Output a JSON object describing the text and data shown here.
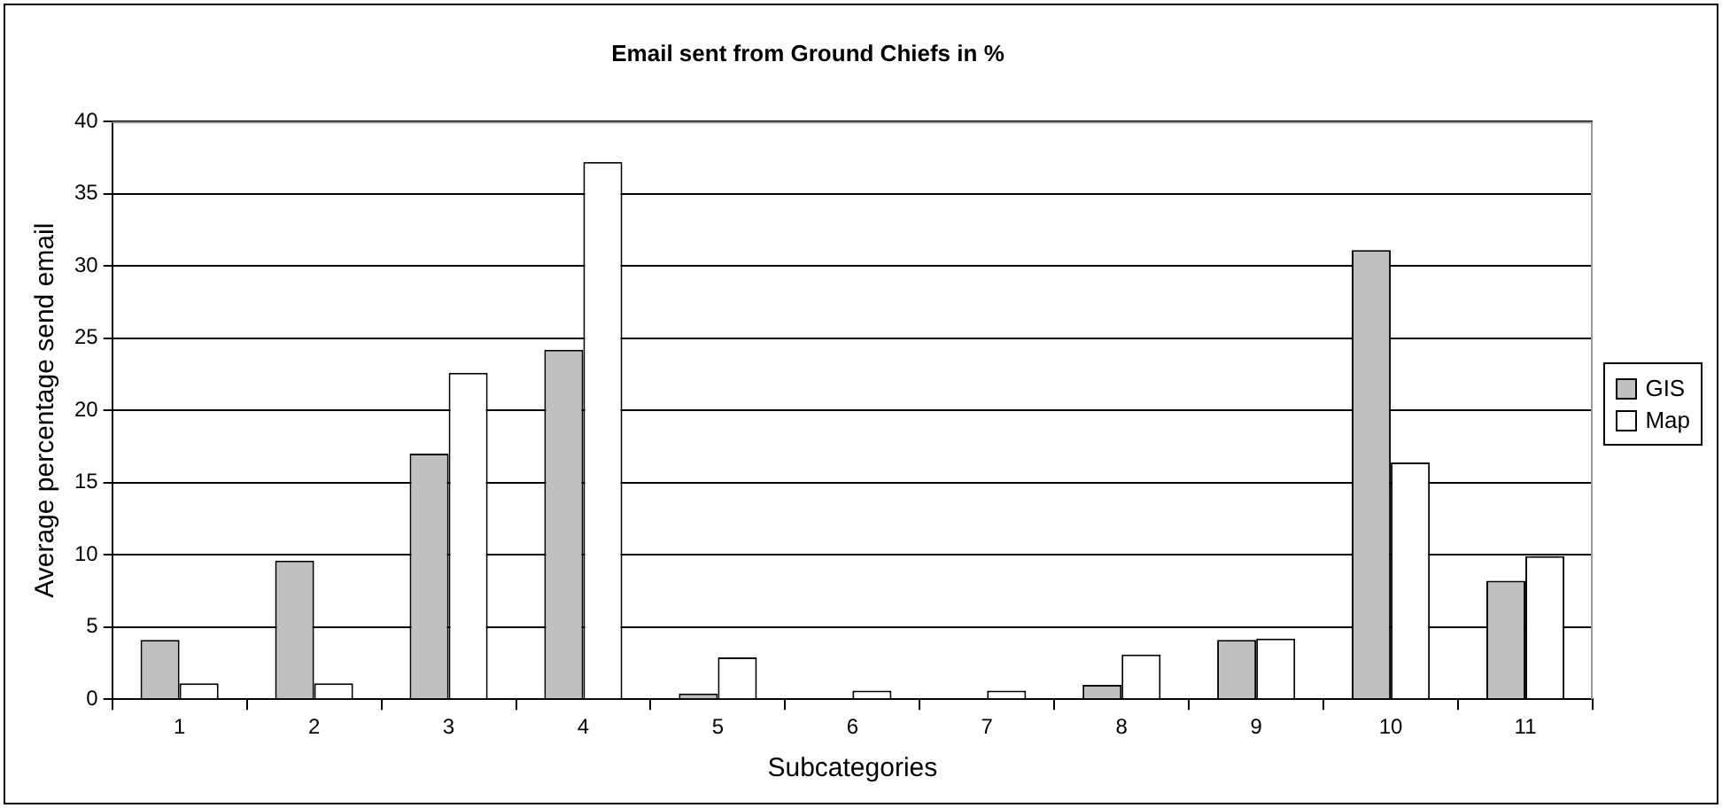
{
  "chart_data": {
    "type": "bar",
    "title": "Email sent from Ground Chiefs in %",
    "xlabel": "Subcategories",
    "ylabel": "Average percentage send email",
    "categories": [
      "1",
      "2",
      "3",
      "4",
      "5",
      "6",
      "7",
      "8",
      "9",
      "10",
      "11"
    ],
    "series": [
      {
        "name": "GIS",
        "color": "#c0c0c0",
        "values": [
          4.1,
          9.6,
          17.0,
          24.2,
          0.4,
          0,
          0,
          1.0,
          4.1,
          31.1,
          8.2
        ]
      },
      {
        "name": "Map",
        "color": "#ffffff",
        "values": [
          1.1,
          1.1,
          22.6,
          37.2,
          2.9,
          0.6,
          0.6,
          3.1,
          4.2,
          16.4,
          9.9
        ]
      }
    ],
    "ylim": [
      0,
      40
    ],
    "yticks": [
      0,
      5,
      10,
      15,
      20,
      25,
      30,
      35,
      40
    ],
    "grid": "y",
    "legend": "right"
  }
}
